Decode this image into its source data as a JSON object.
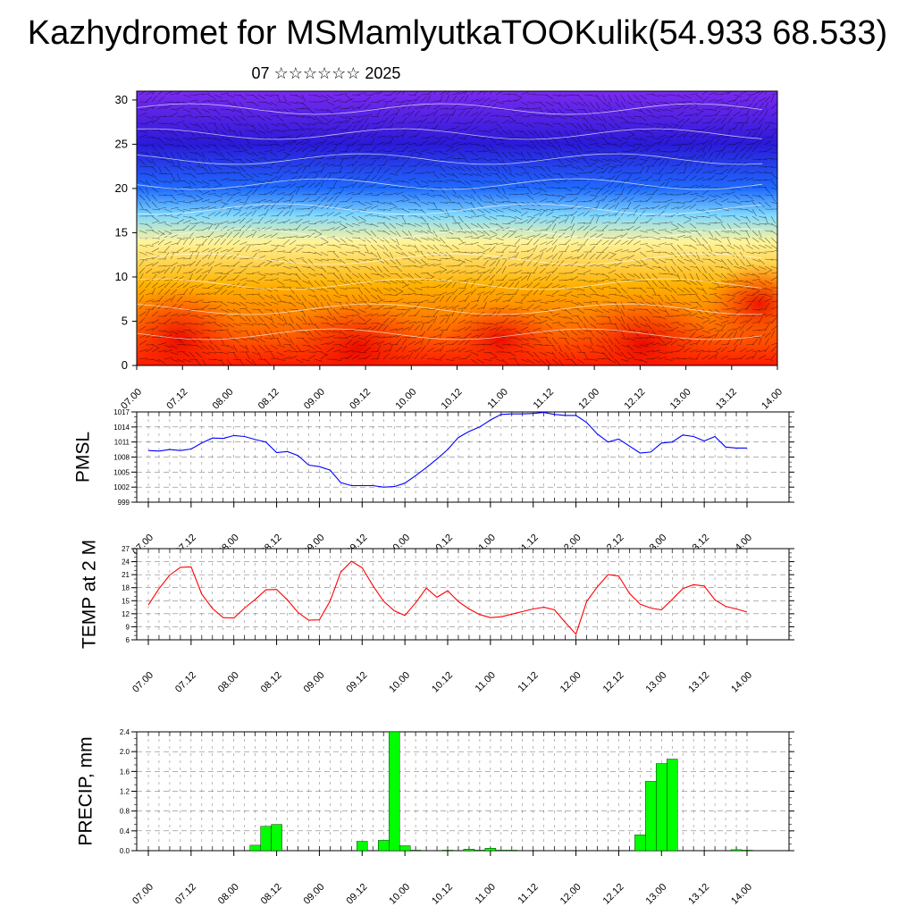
{
  "page": {
    "title": "Kazhydromet for MSMamlyutkaTOOKulik(54.933 68.533)",
    "subtitle": "07 ☆☆☆☆☆☆ 2025"
  },
  "chart_data": [
    {
      "type": "heatmap",
      "name": "vertical cross-section",
      "title": "",
      "xlabel": "",
      "ylabel": "",
      "x_ticks": [
        "07.00",
        "07.12",
        "08.00",
        "08.12",
        "09.00",
        "09.12",
        "10.00",
        "10.12",
        "11.00",
        "11.12",
        "12.00",
        "12.12",
        "13.00",
        "13.12",
        "14.00"
      ],
      "y_ticks": [
        "0",
        "5",
        "10",
        "15",
        "20",
        "25",
        "30"
      ],
      "ylim": [
        0,
        31
      ],
      "colormap": [
        "#ff1a00",
        "#ff6a00",
        "#ffb000",
        "#fff59a",
        "#7fd8ff",
        "#1f6bff",
        "#2a1ad8",
        "#7a2af0"
      ],
      "colormap_levels": [
        0,
        4,
        9,
        14,
        17,
        20,
        25,
        31
      ],
      "overlay": "wind barbs and contour lines"
    },
    {
      "type": "line",
      "ylabel": "PMSL",
      "ylim": [
        999,
        1017
      ],
      "y_ticks": [
        "999",
        "1002",
        "1005",
        "1008",
        "1011",
        "1014",
        "1017"
      ],
      "x_ticks": [
        "07.00",
        "07.12",
        "08.00",
        "08.12",
        "09.00",
        "09.12",
        "10.00",
        "10.12",
        "11.00",
        "11.12",
        "12.00",
        "12.12",
        "13.00",
        "13.12",
        "14.00"
      ],
      "x": [
        0,
        1,
        2,
        3,
        4,
        5,
        6,
        7,
        8,
        9,
        10,
        11,
        12,
        13,
        14,
        15,
        16,
        17,
        18,
        19,
        20,
        21,
        22,
        23,
        24,
        25,
        26,
        27,
        28,
        29,
        30,
        31,
        32,
        33,
        34,
        35,
        36,
        37,
        38,
        39,
        40,
        41,
        42,
        43,
        44,
        45,
        46,
        47,
        48,
        49,
        50,
        51,
        52,
        53,
        54,
        55,
        56
      ],
      "series": [
        {
          "color": "#0000ff",
          "values": [
            1009.3,
            1009.2,
            1009.5,
            1009.3,
            1009.6,
            1010.8,
            1011.8,
            1011.7,
            1012.3,
            1012.1,
            1011.5,
            1011.0,
            1008.9,
            1009.1,
            1008.3,
            1006.4,
            1006.1,
            1005.4,
            1002.9,
            1002.3,
            1002.3,
            1002.3,
            1002.0,
            1002.1,
            1002.8,
            1004.3,
            1005.9,
            1007.6,
            1009.5,
            1011.9,
            1013.1,
            1014.0,
            1015.4,
            1016.5,
            1016.6,
            1016.6,
            1016.7,
            1016.9,
            1016.5,
            1016.3,
            1016.3,
            1014.9,
            1012.6,
            1011.0,
            1011.6,
            1010.2,
            1008.8,
            1009.0,
            1010.8,
            1011.0,
            1012.4,
            1012.1,
            1011.2,
            1012.1,
            1010.0,
            1009.8,
            1009.8
          ]
        }
      ]
    },
    {
      "type": "line",
      "ylabel": "TEMP at 2 M",
      "ylim": [
        6,
        27
      ],
      "y_ticks": [
        "6",
        "9",
        "12",
        "15",
        "18",
        "21",
        "24",
        "27"
      ],
      "x_ticks": [
        "07.00",
        "07.12",
        "08.00",
        "08.12",
        "09.00",
        "09.12",
        "10.00",
        "10.12",
        "11.00",
        "11.12",
        "12.00",
        "12.12",
        "13.00",
        "13.12",
        "14.00"
      ],
      "x": [
        0,
        1,
        2,
        3,
        4,
        5,
        6,
        7,
        8,
        9,
        10,
        11,
        12,
        13,
        14,
        15,
        16,
        17,
        18,
        19,
        20,
        21,
        22,
        23,
        24,
        25,
        26,
        27,
        28,
        29,
        30,
        31,
        32,
        33,
        34,
        35,
        36,
        37,
        38,
        39,
        40,
        41,
        42,
        43,
        44,
        45,
        46,
        47,
        48,
        49,
        50,
        51,
        52,
        53,
        54,
        55,
        56
      ],
      "series": [
        {
          "color": "#ff0000",
          "values": [
            14.0,
            17.8,
            20.9,
            22.7,
            22.8,
            16.5,
            13.2,
            11.1,
            11.0,
            13.3,
            15.3,
            17.5,
            17.6,
            15.2,
            12.3,
            10.5,
            10.6,
            14.9,
            21.6,
            24.1,
            22.6,
            18.5,
            14.9,
            12.7,
            11.6,
            14.5,
            17.9,
            15.8,
            17.3,
            14.8,
            13.1,
            11.8,
            11.1,
            11.3,
            11.9,
            12.5,
            13.1,
            13.5,
            12.9,
            10.0,
            7.3,
            14.8,
            18.2,
            21.0,
            20.7,
            16.7,
            14.2,
            13.3,
            12.9,
            15.3,
            17.8,
            18.7,
            18.4,
            15.2,
            13.7,
            13.1,
            12.4
          ]
        }
      ]
    },
    {
      "type": "bar",
      "ylabel": "PRECIP, mm",
      "ylim": [
        0,
        2.4
      ],
      "y_ticks": [
        "0.0",
        "0.4",
        "0.8",
        "1.2",
        "1.6",
        "2.0",
        "2.4"
      ],
      "x_ticks": [
        "07.00",
        "07.12",
        "08.00",
        "08.12",
        "09.00",
        "09.12",
        "10.00",
        "10.12",
        "11.00",
        "11.12",
        "12.00",
        "12.12",
        "13.00",
        "13.12",
        "14.00"
      ],
      "x": [
        0,
        1,
        2,
        3,
        4,
        5,
        6,
        7,
        8,
        9,
        10,
        11,
        12,
        13,
        14,
        15,
        16,
        17,
        18,
        19,
        20,
        21,
        22,
        23,
        24,
        25,
        26,
        27,
        28,
        29,
        30,
        31,
        32,
        33,
        34,
        35,
        36,
        37,
        38,
        39,
        40,
        41,
        42,
        43,
        44,
        45,
        46,
        47,
        48,
        49,
        50,
        51,
        52,
        53,
        54,
        55,
        56
      ],
      "series": [
        {
          "color": "#00ff00",
          "values": [
            0,
            0,
            0,
            0,
            0,
            0,
            0,
            0,
            0,
            0,
            0.11,
            0.49,
            0.53,
            0,
            0,
            0,
            0,
            0,
            0,
            0,
            0.19,
            0,
            0.21,
            2.4,
            0.1,
            0.01,
            0,
            0,
            0.01,
            0,
            0.03,
            0.01,
            0.05,
            0.01,
            0.01,
            0,
            0,
            0,
            0,
            0,
            0,
            0,
            0,
            0,
            0,
            0,
            0.32,
            1.4,
            1.76,
            1.85,
            0,
            0,
            0,
            0,
            0,
            0.02,
            0.01
          ]
        }
      ]
    }
  ]
}
